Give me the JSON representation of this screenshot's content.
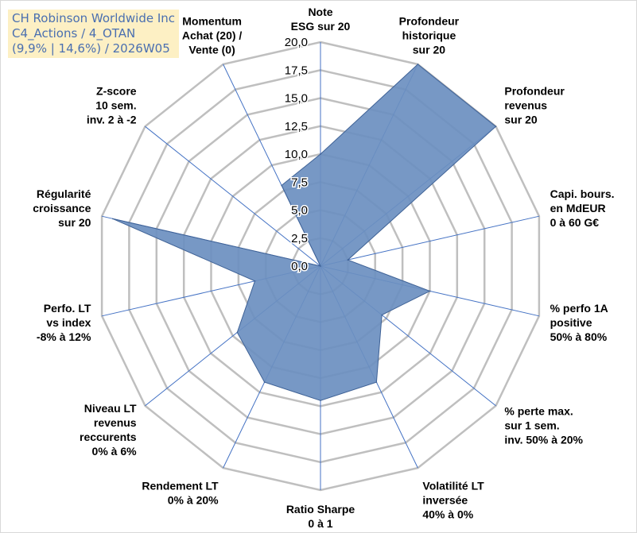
{
  "title_lines": [
    "CH Robinson Worldwide Inc",
    "C4_Actions / 4_OTAN",
    "(9,9% | 14,6%) / 2026W05"
  ],
  "colors": {
    "grid": "#bfbfbf",
    "spoke": "#4472c4",
    "fill": "#6b8fc0",
    "outline": "#3f6296",
    "label": "#000000",
    "title_background": "#fdf0c4",
    "title_text": "#4a6fb0"
  },
  "chart_data": {
    "type": "radar",
    "rmin": 0,
    "rmax": 20,
    "rings": [
      0,
      2.5,
      5,
      7.5,
      10,
      12.5,
      15,
      17.5,
      20
    ],
    "ring_labels": [
      "0,0",
      "2,5",
      "5,0",
      "7,5",
      "10,0",
      "12,5",
      "15,0",
      "17,5",
      "20,0"
    ],
    "categories": [
      [
        "Note",
        "ESG sur 20"
      ],
      [
        "Profondeur",
        "historique",
        "sur 20"
      ],
      [
        "Profondeur",
        "revenus",
        "sur 20"
      ],
      [
        "Capi. bours.",
        "en MdEUR",
        "0 à 60 G€"
      ],
      [
        "% perfo 1A",
        "positive",
        "50% à 80%"
      ],
      [
        "% perte max.",
        "sur 1 sem.",
        "inv. 50% à 20%"
      ],
      [
        "Volatilité LT",
        "inversée",
        "40% à 0%"
      ],
      [
        "Ratio Sharpe",
        "0 à 1"
      ],
      [
        "Rendement LT",
        "0% à 20%"
      ],
      [
        "Niveau LT",
        "revenus",
        "reccurents",
        "0% à 6%"
      ],
      [
        "Perfo. LT",
        "vs index",
        "-8% à 12%"
      ],
      [
        "Régularité",
        "croissance",
        "sur 20"
      ],
      [
        "Z-score",
        "10 sem.",
        "inv. 2 à -2"
      ],
      [
        "Momentum",
        "Achat (20) /",
        "Vente (0)"
      ]
    ],
    "values": [
      10,
      20,
      20,
      2.5,
      10,
      7,
      11.5,
      12,
      11.5,
      9.5,
      6,
      19,
      0,
      8
    ]
  }
}
